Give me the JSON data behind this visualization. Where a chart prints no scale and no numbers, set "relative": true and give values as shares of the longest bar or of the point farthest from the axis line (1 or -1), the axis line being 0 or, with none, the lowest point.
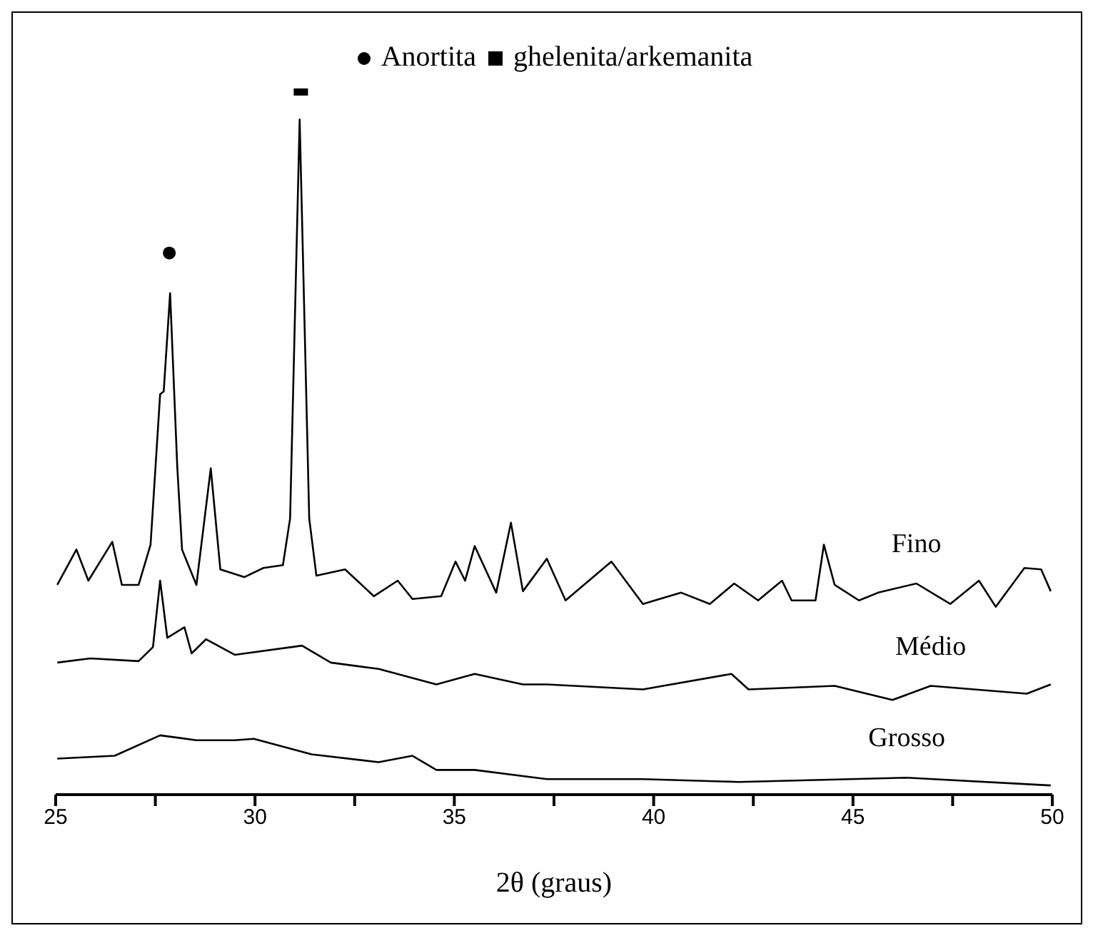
{
  "chart_data": {
    "type": "line",
    "relative": true,
    "xlabel": "2θ (graus)",
    "xlim": [
      25,
      50
    ],
    "xticks": [
      25,
      {
        "value": 27.5,
        "label": null
      },
      30,
      {
        "value": 32.5,
        "label": null
      },
      35,
      {
        "value": 37.5,
        "label": null
      },
      40,
      {
        "value": 42.5,
        "label": null
      },
      45,
      {
        "value": 47.5,
        "label": null
      },
      50
    ],
    "legend": "top",
    "grid": false,
    "marker": "none",
    "line_style": "solid",
    "series": [
      {
        "name": "Fino",
        "color": "#000000",
        "x": [
          25.04,
          25.52,
          25.82,
          26.42,
          26.66,
          27.08,
          27.38,
          27.62,
          27.71,
          27.87,
          28.05,
          28.17,
          28.53,
          28.89,
          29.13,
          29.73,
          30.21,
          30.7,
          30.88,
          31.12,
          31.36,
          31.54,
          32.26,
          32.98,
          33.58,
          33.95,
          34.67,
          35.03,
          35.27,
          35.51,
          36.05,
          36.42,
          36.72,
          37.32,
          37.79,
          38.94,
          39.73,
          40.69,
          41.41,
          42.02,
          42.62,
          43.22,
          43.46,
          44.06,
          44.27,
          44.54,
          45.15,
          45.63,
          46.59,
          47.44,
          48.16,
          48.58,
          49.3,
          49.72,
          49.96
        ],
        "values": [
          0.297,
          0.347,
          0.303,
          0.358,
          0.297,
          0.297,
          0.354,
          0.567,
          0.571,
          0.71,
          0.464,
          0.347,
          0.297,
          0.462,
          0.319,
          0.308,
          0.321,
          0.325,
          0.391,
          0.956,
          0.391,
          0.31,
          0.319,
          0.281,
          0.303,
          0.277,
          0.281,
          0.33,
          0.303,
          0.352,
          0.286,
          0.385,
          0.288,
          0.334,
          0.275,
          0.33,
          0.27,
          0.286,
          0.27,
          0.299,
          0.275,
          0.303,
          0.275,
          0.275,
          0.354,
          0.297,
          0.275,
          0.286,
          0.299,
          0.27,
          0.303,
          0.266,
          0.321,
          0.319,
          0.288
        ]
      },
      {
        "name": "Médio",
        "color": "#000000",
        "x": [
          25.04,
          25.87,
          27.08,
          27.44,
          27.62,
          27.8,
          28.23,
          28.41,
          28.77,
          29.49,
          31.18,
          31.9,
          33.1,
          34.55,
          35.51,
          36.72,
          37.32,
          39.73,
          41.95,
          42.38,
          44.54,
          45.99,
          46.95,
          49.36,
          49.96
        ],
        "values": [
          0.187,
          0.193,
          0.189,
          0.209,
          0.303,
          0.222,
          0.237,
          0.2,
          0.22,
          0.198,
          0.211,
          0.187,
          0.178,
          0.156,
          0.171,
          0.156,
          0.156,
          0.149,
          0.171,
          0.149,
          0.154,
          0.134,
          0.154,
          0.143,
          0.156
        ]
      },
      {
        "name": "Grosso",
        "color": "#000000",
        "x": [
          25.04,
          26.48,
          27.62,
          28.53,
          29.49,
          29.97,
          31.42,
          33.1,
          33.95,
          34.55,
          35.51,
          37.32,
          39.73,
          42.14,
          46.35,
          49.96
        ],
        "values": [
          0.051,
          0.055,
          0.084,
          0.077,
          0.077,
          0.079,
          0.057,
          0.046,
          0.055,
          0.035,
          0.035,
          0.022,
          0.022,
          0.018,
          0.024,
          0.013
        ]
      },
      {
        "name": "Anortita",
        "type": "scatter",
        "marker": "circle",
        "color": "#000000",
        "x": [
          27.85
        ],
        "values": [
          0.767
        ]
      },
      {
        "name": "ghelenita/arkemanita",
        "type": "scatter",
        "marker": "square",
        "color": "#000000",
        "x": [
          31.15
        ],
        "values": [
          1
        ]
      }
    ]
  }
}
